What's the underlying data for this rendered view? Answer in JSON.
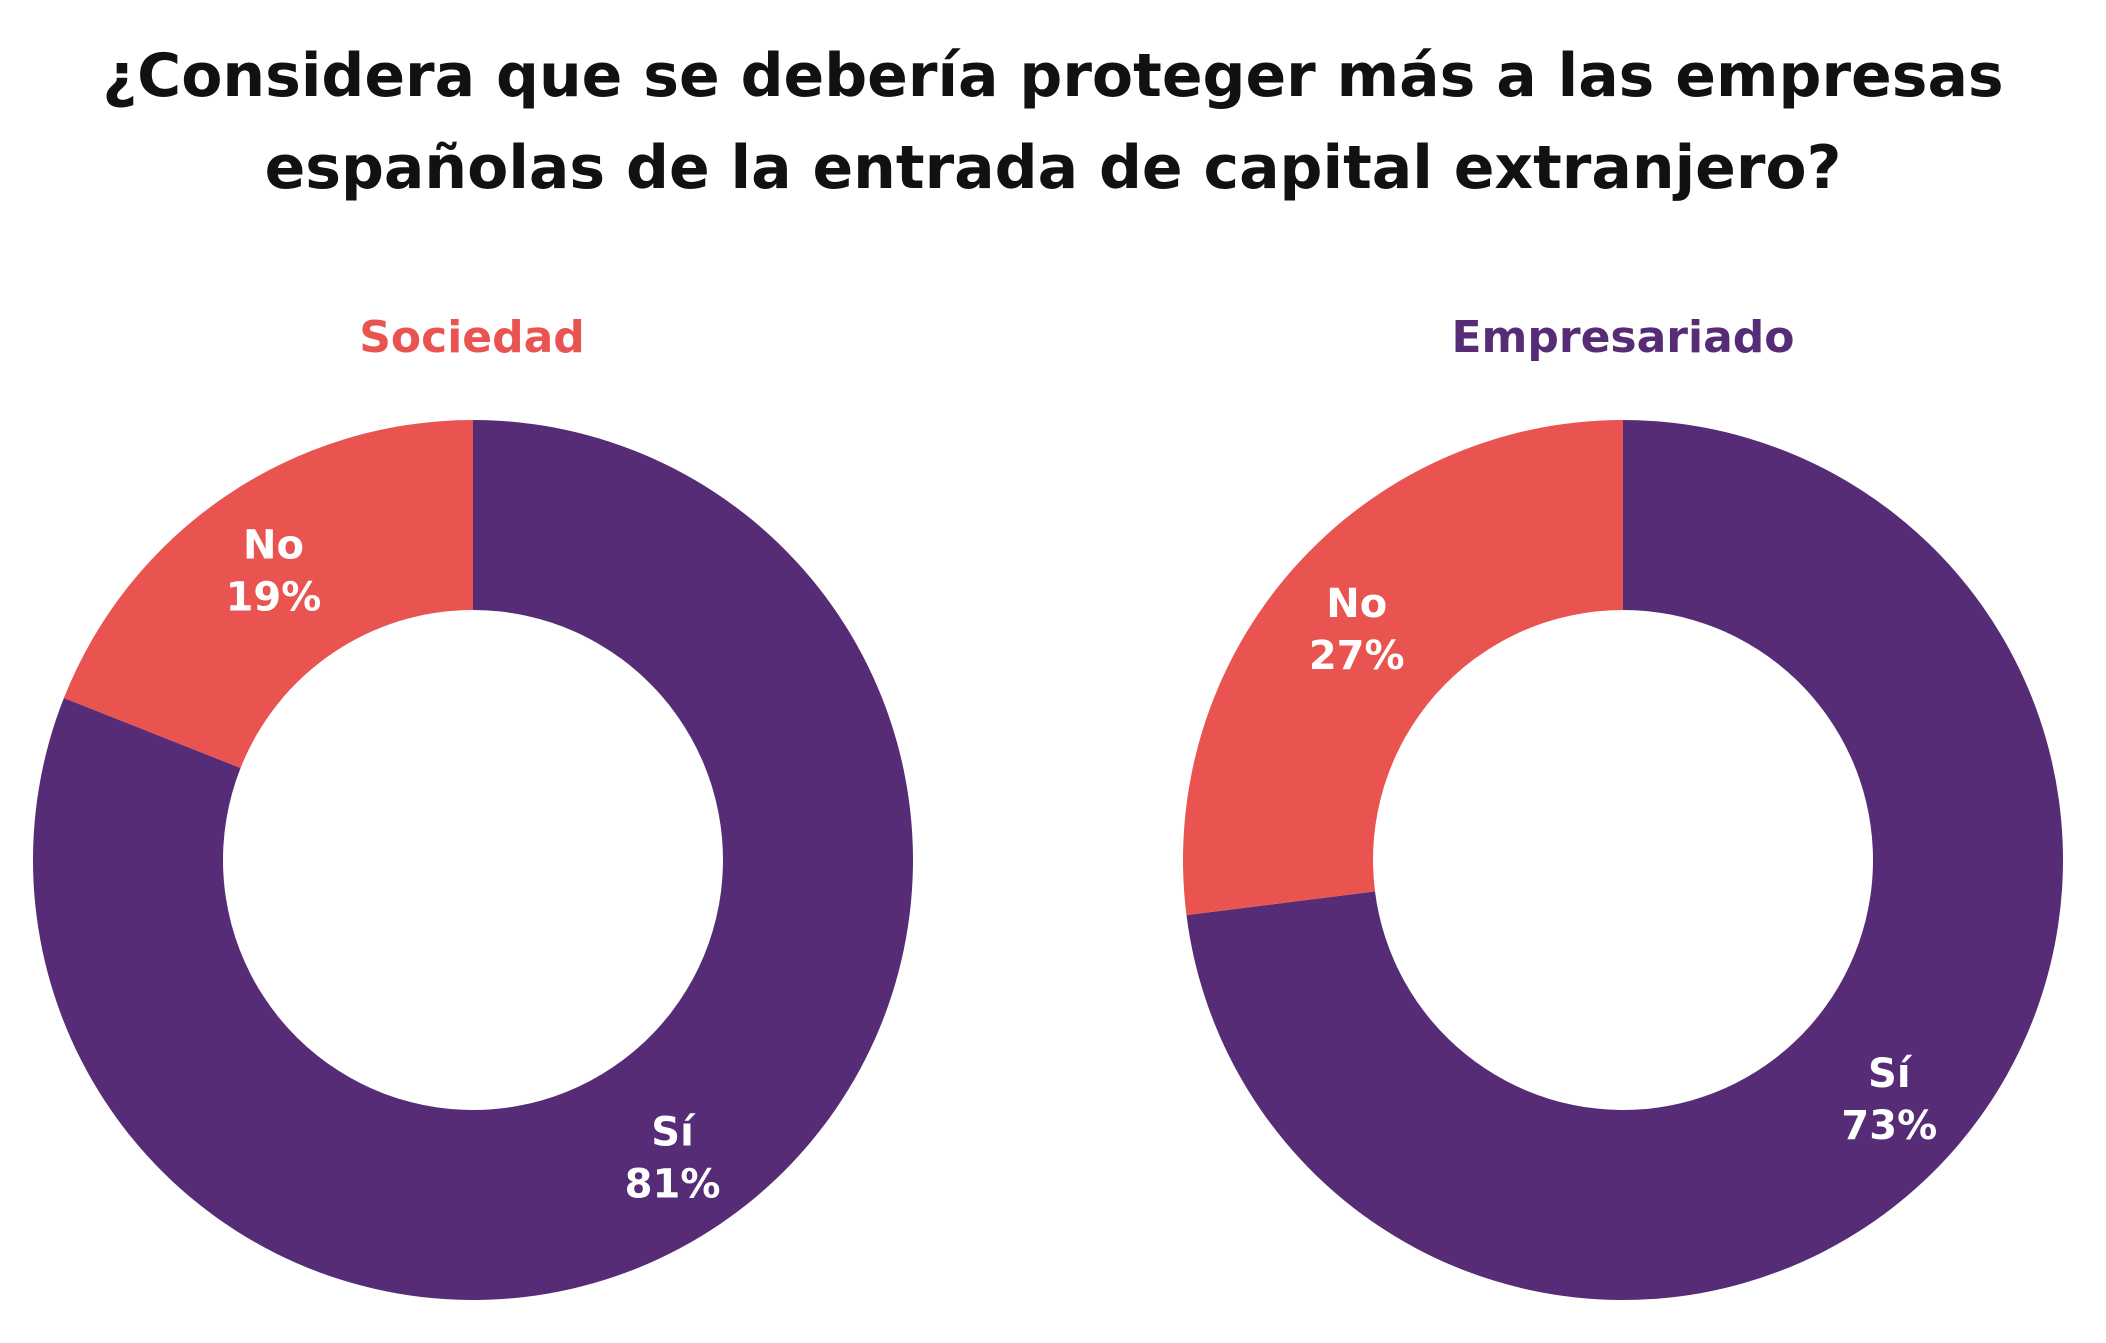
{
  "title_lines": [
    "¿Considera que se debería proteger más a las empresas",
    "españolas de la entrada de capital extranjero?"
  ],
  "colors": {
    "si": "#572c77",
    "no": "#e95350",
    "title_sociedad": "#e95350",
    "title_empresariado": "#572c77"
  },
  "chart_data": [
    {
      "type": "pie",
      "title": "Sociedad",
      "slices": [
        {
          "name": "Sí",
          "value": 81,
          "label": "81%",
          "color": "#572c77"
        },
        {
          "name": "No",
          "value": 19,
          "label": "19%",
          "color": "#e95350"
        }
      ]
    },
    {
      "type": "pie",
      "title": "Empresariado",
      "slices": [
        {
          "name": "Sí",
          "value": 73,
          "label": "73%",
          "color": "#572c77"
        },
        {
          "name": "No",
          "value": 27,
          "label": "27%",
          "color": "#e95350"
        }
      ]
    }
  ]
}
